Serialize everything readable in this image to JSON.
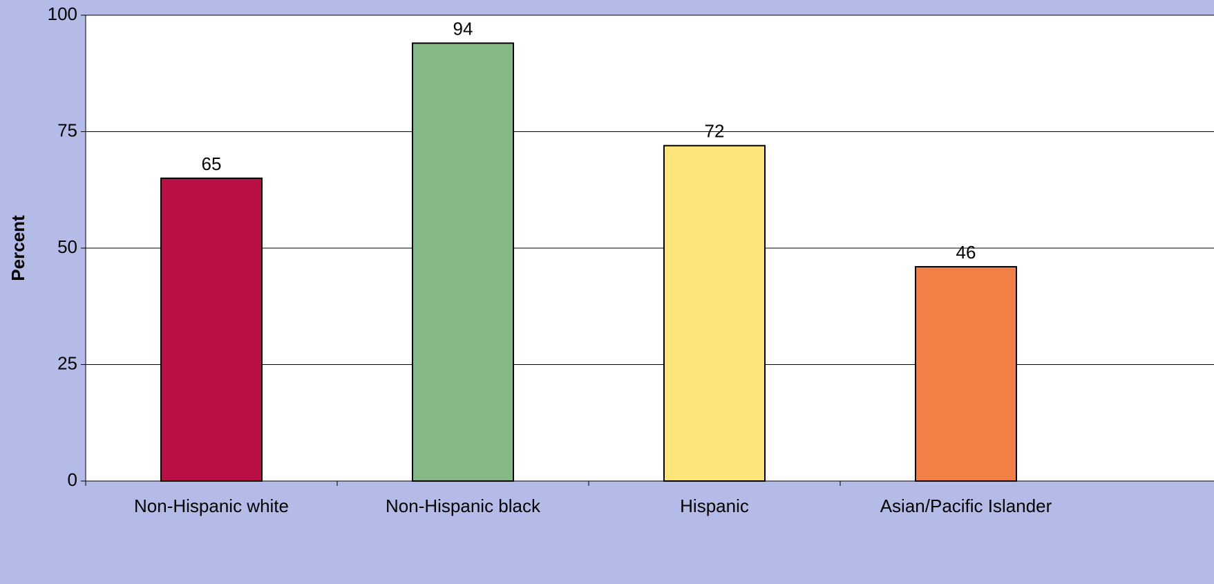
{
  "chart_data": {
    "type": "bar",
    "title": "",
    "xlabel": "",
    "ylabel": "Percent",
    "categories": [
      "Non-Hispanic white",
      "Non-Hispanic black",
      "Hispanic",
      "Asian/Pacific Islander"
    ],
    "values": [
      65,
      94,
      72,
      46
    ],
    "data_labels": [
      "65",
      "94",
      "72",
      "46"
    ],
    "bar_colors": [
      "#b80f45",
      "#84b884",
      "#ffe47c",
      "#f08046"
    ],
    "ylim": [
      0,
      100
    ],
    "yticks": [
      "0",
      "25",
      "50",
      "75",
      "100"
    ],
    "grid": true,
    "legend": "none"
  },
  "colors": {
    "background": "#b3bbe6",
    "plot_area": "#ffffff",
    "bar_outline": "#000000",
    "gridline": "#000000"
  }
}
